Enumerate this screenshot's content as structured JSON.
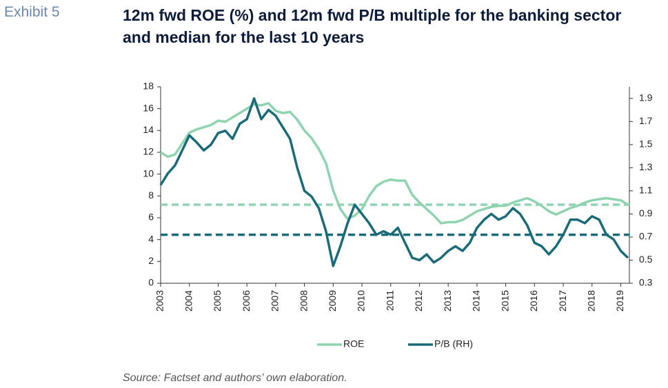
{
  "chart_data": {
    "type": "line",
    "exhibit": "Exhibit 5",
    "title": "12m fwd ROE (%) and 12m fwd P/B multiple for the banking sector and median for the last 10 years",
    "source": "Source: Factset and authors’ own elaboration.",
    "x": [
      2003,
      2003.25,
      2003.5,
      2003.75,
      2004,
      2004.25,
      2004.5,
      2004.75,
      2005,
      2005.25,
      2005.5,
      2005.75,
      2006,
      2006.25,
      2006.5,
      2006.75,
      2007,
      2007.25,
      2007.5,
      2007.75,
      2008,
      2008.25,
      2008.5,
      2008.75,
      2009,
      2009.25,
      2009.5,
      2009.75,
      2010,
      2010.25,
      2010.5,
      2010.75,
      2011,
      2011.25,
      2011.5,
      2011.75,
      2012,
      2012.25,
      2012.5,
      2012.75,
      2013,
      2013.25,
      2013.5,
      2013.75,
      2014,
      2014.25,
      2014.5,
      2014.75,
      2015,
      2015.25,
      2015.5,
      2015.75,
      2016,
      2016.25,
      2016.5,
      2016.75,
      2017,
      2017.25,
      2017.5,
      2017.75,
      2018,
      2018.25,
      2018.5,
      2018.75,
      2019,
      2019.25
    ],
    "series": [
      {
        "name": "ROE",
        "color": "#8fd3b0",
        "axis": "y",
        "values": [
          12.0,
          11.6,
          11.8,
          12.8,
          13.8,
          14.1,
          14.3,
          14.5,
          14.9,
          14.8,
          15.2,
          15.6,
          16.0,
          16.4,
          16.3,
          16.5,
          15.8,
          15.6,
          15.7,
          15.0,
          14.0,
          13.3,
          12.3,
          11.0,
          8.5,
          6.8,
          5.9,
          6.2,
          6.8,
          8.0,
          8.9,
          9.3,
          9.5,
          9.4,
          9.4,
          8.1,
          7.4,
          6.8,
          6.2,
          5.5,
          5.6,
          5.6,
          5.8,
          6.2,
          6.6,
          6.8,
          7.0,
          7.1,
          7.1,
          7.4,
          7.6,
          7.8,
          7.5,
          7.1,
          6.6,
          6.3,
          6.6,
          6.9,
          7.1,
          7.4,
          7.6,
          7.7,
          7.8,
          7.7,
          7.6,
          7.2
        ]
      },
      {
        "name": "P/B (RH)",
        "color": "#1a6b7a",
        "axis": "y2",
        "values": [
          1.15,
          1.25,
          1.32,
          1.45,
          1.58,
          1.52,
          1.45,
          1.5,
          1.6,
          1.62,
          1.55,
          1.68,
          1.72,
          1.9,
          1.72,
          1.8,
          1.75,
          1.65,
          1.55,
          1.3,
          1.1,
          1.05,
          0.95,
          0.75,
          0.45,
          0.62,
          0.82,
          0.98,
          0.9,
          0.82,
          0.72,
          0.75,
          0.72,
          0.78,
          0.65,
          0.52,
          0.5,
          0.55,
          0.48,
          0.52,
          0.58,
          0.62,
          0.58,
          0.65,
          0.78,
          0.85,
          0.9,
          0.85,
          0.88,
          0.95,
          0.9,
          0.8,
          0.65,
          0.62,
          0.55,
          0.62,
          0.72,
          0.85,
          0.85,
          0.82,
          0.88,
          0.85,
          0.72,
          0.68,
          0.58,
          0.52
        ]
      }
    ],
    "medians": [
      {
        "value": 7.2,
        "color": "#8fd3b0",
        "axis": "y"
      },
      {
        "value": 0.72,
        "color": "#1a6b7a",
        "axis": "y2"
      }
    ],
    "xlim": [
      2003,
      2019.3
    ],
    "xticks": [
      2003,
      2004,
      2005,
      2006,
      2007,
      2008,
      2009,
      2010,
      2011,
      2012,
      2013,
      2014,
      2015,
      2016,
      2017,
      2018,
      2019
    ],
    "ylim": [
      0,
      18
    ],
    "yticks": [
      0,
      2,
      4,
      6,
      8,
      10,
      12,
      14,
      16,
      18
    ],
    "y2lim": [
      0.3,
      2.0
    ],
    "y2ticks": [
      0.3,
      0.5,
      0.7,
      0.9,
      1.1,
      1.3,
      1.5,
      1.7,
      1.9
    ],
    "legend": "bottom"
  }
}
